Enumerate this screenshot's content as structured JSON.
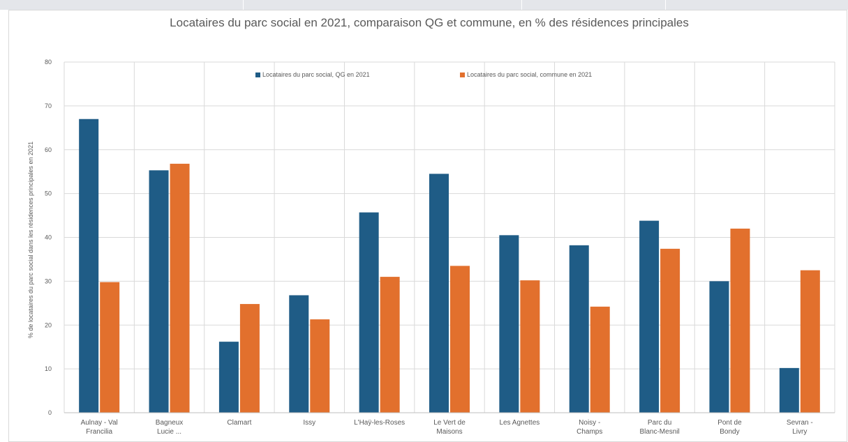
{
  "chart_data": {
    "type": "bar",
    "title": "Locataires du parc social en 2021, comparaison QG et commune, en % des résidences principales",
    "xlabel": "",
    "ylabel": "% de locataires du parc social dans les résidences principales en 2021",
    "ylim": [
      0,
      80
    ],
    "yticks": [
      "0",
      "10",
      "20",
      "30",
      "40",
      "50",
      "60",
      "70",
      "80"
    ],
    "grid": true,
    "legend_position": "top",
    "categories": [
      "Aulnay - Val Francilia",
      "Bagneux Lucie ...",
      "Clamart",
      "Issy",
      "L'Haÿ-les-Roses",
      "Le Vert de Maisons",
      "Les Agnettes",
      "Noisy - Champs",
      "Parc du Blanc-Mesnil",
      "Pont de Bondy",
      "Sevran - Livry"
    ],
    "series": [
      {
        "name": "Locataires du parc social, QG en 2021",
        "color": "#1f5c86",
        "values": [
          67,
          55.3,
          16.2,
          26.8,
          45.7,
          54.5,
          40.5,
          38.2,
          43.8,
          30,
          10.2
        ]
      },
      {
        "name": "Locataires du parc social, commune en 2021",
        "color": "#e2702d",
        "values": [
          29.8,
          56.8,
          24.8,
          21.3,
          31,
          33.5,
          30.2,
          24.2,
          37.4,
          42,
          32.5
        ]
      }
    ]
  }
}
